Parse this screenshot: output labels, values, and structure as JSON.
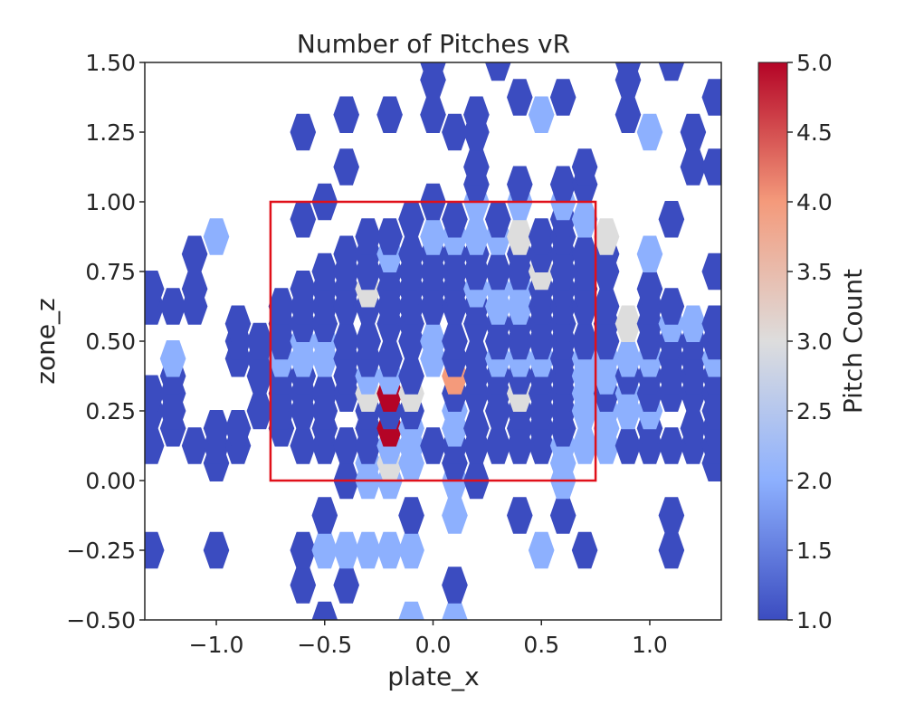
{
  "chart_data": {
    "type": "heatmap",
    "title": "Number of Pitches vR",
    "xlabel": "plate_x",
    "ylabel": "zone_z",
    "xlim": [
      -1.33,
      1.33
    ],
    "ylim": [
      -0.5,
      1.5
    ],
    "x_ticks": [
      -1.0,
      -0.5,
      0.0,
      0.5,
      1.0
    ],
    "x_tick_labels": [
      "−1.0",
      "−0.5",
      "0.0",
      "0.5",
      "1.0"
    ],
    "y_ticks": [
      -0.5,
      -0.25,
      0.0,
      0.25,
      0.5,
      0.75,
      1.0,
      1.25,
      1.5
    ],
    "y_tick_labels": [
      "−0.50",
      "−0.25",
      "0.00",
      "0.25",
      "0.50",
      "0.75",
      "1.00",
      "1.25",
      "1.50"
    ],
    "colorbar": {
      "label": "Pitch Count",
      "min": 1.0,
      "max": 5.0,
      "ticks": [
        1.0,
        1.5,
        2.0,
        2.5,
        3.0,
        3.5,
        4.0,
        4.5,
        5.0
      ],
      "tick_labels": [
        "1.0",
        "1.5",
        "2.0",
        "2.5",
        "3.0",
        "3.5",
        "4.0",
        "4.5",
        "5.0"
      ],
      "colormap": "coolwarm"
    },
    "strike_zone": {
      "x": [
        -0.75,
        0.75
      ],
      "z": [
        0.0,
        1.0
      ],
      "color": "#e0101a"
    },
    "hex_grid": {
      "x0": -1.3,
      "dx": 0.1,
      "z0": -0.5,
      "dz": 0.25
    },
    "cells": [
      [
        -1.3,
        -0.5,
        0
      ],
      [
        -0.9,
        -0.5,
        0
      ],
      [
        -0.5,
        -0.5,
        1
      ],
      [
        -0.1,
        -0.5,
        2
      ],
      [
        0.1,
        -0.5,
        2
      ],
      [
        -0.6,
        -0.375,
        1
      ],
      [
        -0.4,
        -0.375,
        1
      ],
      [
        0.1,
        -0.375,
        1
      ],
      [
        -1.3,
        -0.25,
        1
      ],
      [
        -1.0,
        -0.25,
        1
      ],
      [
        -0.6,
        -0.25,
        1
      ],
      [
        -0.5,
        -0.25,
        2
      ],
      [
        -0.4,
        -0.25,
        2
      ],
      [
        -0.3,
        -0.25,
        2
      ],
      [
        -0.2,
        -0.25,
        2
      ],
      [
        -0.1,
        -0.25,
        2
      ],
      [
        0.5,
        -0.25,
        2
      ],
      [
        0.7,
        -0.25,
        1
      ],
      [
        1.1,
        -0.25,
        1
      ],
      [
        -0.5,
        -0.125,
        1
      ],
      [
        -0.1,
        -0.125,
        1
      ],
      [
        0.1,
        -0.125,
        2
      ],
      [
        0.4,
        -0.125,
        1
      ],
      [
        0.6,
        -0.125,
        1
      ],
      [
        1.1,
        -0.125,
        1
      ],
      [
        -0.4,
        0.0,
        1
      ],
      [
        -0.3,
        0.0,
        2
      ],
      [
        -0.2,
        0.0,
        2
      ],
      [
        0.1,
        0.0,
        2
      ],
      [
        0.2,
        0.0,
        1
      ],
      [
        0.6,
        0.0,
        2
      ],
      [
        -1.0,
        0.0625,
        1
      ],
      [
        -0.3,
        0.0625,
        2
      ],
      [
        -0.2,
        0.0625,
        3
      ],
      [
        -0.1,
        0.0625,
        2
      ],
      [
        0.1,
        0.0625,
        1
      ],
      [
        0.6,
        0.0625,
        2
      ],
      [
        1.3,
        0.0625,
        1
      ],
      [
        -1.3,
        0.125,
        1
      ],
      [
        -1.1,
        0.125,
        1
      ],
      [
        -1.0,
        0.125,
        1
      ],
      [
        -0.9,
        0.125,
        1
      ],
      [
        -0.6,
        0.125,
        1
      ],
      [
        -0.5,
        0.125,
        1
      ],
      [
        -0.4,
        0.125,
        1
      ],
      [
        -0.3,
        0.125,
        1
      ],
      [
        -0.2,
        0.125,
        2
      ],
      [
        -0.1,
        0.125,
        2
      ],
      [
        0.0,
        0.125,
        1
      ],
      [
        0.1,
        0.125,
        1
      ],
      [
        0.2,
        0.125,
        1
      ],
      [
        0.3,
        0.125,
        1
      ],
      [
        0.4,
        0.125,
        1
      ],
      [
        0.5,
        0.125,
        1
      ],
      [
        0.6,
        0.125,
        2
      ],
      [
        0.7,
        0.125,
        2
      ],
      [
        0.8,
        0.125,
        2
      ],
      [
        0.9,
        0.125,
        1
      ],
      [
        1.0,
        0.125,
        1
      ],
      [
        1.1,
        0.125,
        1
      ],
      [
        1.2,
        0.125,
        1
      ],
      [
        1.3,
        0.125,
        1
      ],
      [
        -1.2,
        0.1875,
        1
      ],
      [
        -1.0,
        0.1875,
        1
      ],
      [
        -0.9,
        0.1875,
        1
      ],
      [
        -0.7,
        0.1875,
        1
      ],
      [
        -0.5,
        0.1875,
        1
      ],
      [
        -0.3,
        0.1875,
        1
      ],
      [
        -0.2,
        0.1875,
        5
      ],
      [
        -0.1,
        0.1875,
        2
      ],
      [
        0.1,
        0.1875,
        2
      ],
      [
        0.2,
        0.1875,
        1
      ],
      [
        0.4,
        0.1875,
        1
      ],
      [
        0.5,
        0.1875,
        1
      ],
      [
        0.6,
        0.1875,
        1
      ],
      [
        0.8,
        0.1875,
        2
      ],
      [
        1.0,
        0.1875,
        1
      ],
      [
        1.2,
        0.1875,
        1
      ],
      [
        1.3,
        0.1875,
        1
      ],
      [
        -1.3,
        0.25,
        1
      ],
      [
        -1.2,
        0.25,
        1
      ],
      [
        -0.8,
        0.25,
        1
      ],
      [
        -0.7,
        0.25,
        1
      ],
      [
        -0.6,
        0.25,
        1
      ],
      [
        -0.5,
        0.25,
        1
      ],
      [
        -0.3,
        0.25,
        1
      ],
      [
        -0.2,
        0.25,
        1
      ],
      [
        -0.1,
        0.25,
        1
      ],
      [
        0.1,
        0.25,
        2
      ],
      [
        0.3,
        0.25,
        1
      ],
      [
        0.4,
        0.25,
        1
      ],
      [
        0.5,
        0.25,
        1
      ],
      [
        0.6,
        0.25,
        1
      ],
      [
        0.7,
        0.25,
        2
      ],
      [
        0.8,
        0.25,
        2
      ],
      [
        0.9,
        0.25,
        2
      ],
      [
        1.0,
        0.25,
        2
      ],
      [
        1.3,
        0.25,
        1
      ],
      [
        -1.3,
        0.3125,
        1
      ],
      [
        -1.2,
        0.3125,
        1
      ],
      [
        -0.7,
        0.3125,
        1
      ],
      [
        -0.6,
        0.3125,
        1
      ],
      [
        -0.5,
        0.3125,
        1
      ],
      [
        -0.4,
        0.3125,
        1
      ],
      [
        -0.3,
        0.3125,
        3
      ],
      [
        -0.2,
        0.3125,
        5
      ],
      [
        -0.1,
        0.3125,
        3
      ],
      [
        0.1,
        0.3125,
        1
      ],
      [
        0.2,
        0.3125,
        1
      ],
      [
        0.3,
        0.3125,
        1
      ],
      [
        0.4,
        0.3125,
        3
      ],
      [
        0.5,
        0.3125,
        1
      ],
      [
        0.6,
        0.3125,
        1
      ],
      [
        0.7,
        0.3125,
        2
      ],
      [
        0.8,
        0.3125,
        1
      ],
      [
        0.9,
        0.3125,
        2
      ],
      [
        1.0,
        0.3125,
        1
      ],
      [
        1.1,
        0.3125,
        1
      ],
      [
        1.2,
        0.3125,
        1
      ],
      [
        1.3,
        0.3125,
        1
      ],
      [
        -1.2,
        0.375,
        1
      ],
      [
        -0.8,
        0.375,
        1
      ],
      [
        -0.7,
        0.375,
        1
      ],
      [
        -0.6,
        0.375,
        1
      ],
      [
        -0.4,
        0.375,
        1
      ],
      [
        -0.3,
        0.375,
        2
      ],
      [
        -0.2,
        0.375,
        2
      ],
      [
        -0.1,
        0.375,
        1
      ],
      [
        0.1,
        0.375,
        4
      ],
      [
        0.2,
        0.375,
        1
      ],
      [
        0.3,
        0.375,
        1
      ],
      [
        0.4,
        0.375,
        1
      ],
      [
        0.5,
        0.375,
        1
      ],
      [
        0.6,
        0.375,
        1
      ],
      [
        0.7,
        0.375,
        2
      ],
      [
        0.8,
        0.375,
        2
      ],
      [
        0.9,
        0.375,
        1
      ],
      [
        1.0,
        0.375,
        1
      ],
      [
        1.1,
        0.375,
        1
      ],
      [
        1.2,
        0.375,
        1
      ],
      [
        1.3,
        0.375,
        1
      ],
      [
        -1.2,
        0.4375,
        2
      ],
      [
        -0.9,
        0.4375,
        1
      ],
      [
        -0.8,
        0.4375,
        1
      ],
      [
        -0.7,
        0.4375,
        2
      ],
      [
        -0.6,
        0.4375,
        2
      ],
      [
        -0.5,
        0.4375,
        2
      ],
      [
        -0.4,
        0.4375,
        1
      ],
      [
        -0.3,
        0.4375,
        1
      ],
      [
        -0.2,
        0.4375,
        1
      ],
      [
        0.0,
        0.4375,
        2
      ],
      [
        0.1,
        0.4375,
        1
      ],
      [
        0.2,
        0.4375,
        1
      ],
      [
        0.3,
        0.4375,
        2
      ],
      [
        0.4,
        0.4375,
        2
      ],
      [
        0.5,
        0.4375,
        2
      ],
      [
        0.6,
        0.4375,
        1
      ],
      [
        0.7,
        0.4375,
        2
      ],
      [
        0.8,
        0.4375,
        2
      ],
      [
        0.9,
        0.4375,
        2
      ],
      [
        1.0,
        0.4375,
        2
      ],
      [
        1.1,
        0.4375,
        1
      ],
      [
        1.2,
        0.4375,
        1
      ],
      [
        1.3,
        0.4375,
        2
      ],
      [
        -0.9,
        0.5,
        1
      ],
      [
        -0.8,
        0.5,
        1
      ],
      [
        -0.7,
        0.5,
        1
      ],
      [
        -0.6,
        0.5,
        2
      ],
      [
        -0.5,
        0.5,
        2
      ],
      [
        -0.4,
        0.5,
        1
      ],
      [
        -0.3,
        0.5,
        1
      ],
      [
        -0.1,
        0.5,
        1
      ],
      [
        0.0,
        0.5,
        2
      ],
      [
        0.1,
        0.5,
        1
      ],
      [
        0.3,
        0.5,
        1
      ],
      [
        0.4,
        0.5,
        1
      ],
      [
        0.5,
        0.5,
        1
      ],
      [
        0.6,
        0.5,
        1
      ],
      [
        0.7,
        0.5,
        1
      ],
      [
        0.8,
        0.5,
        1
      ],
      [
        1.0,
        0.5,
        1
      ],
      [
        1.1,
        0.5,
        1
      ],
      [
        1.2,
        0.5,
        1
      ],
      [
        1.3,
        0.5,
        1
      ],
      [
        -0.9,
        0.5625,
        1
      ],
      [
        -0.7,
        0.5625,
        1
      ],
      [
        -0.6,
        0.5625,
        1
      ],
      [
        -0.5,
        0.5625,
        1
      ],
      [
        -0.2,
        0.5625,
        1
      ],
      [
        -0.1,
        0.5625,
        1
      ],
      [
        0.2,
        0.5625,
        1
      ],
      [
        0.3,
        0.5625,
        1
      ],
      [
        0.4,
        0.5625,
        1
      ],
      [
        0.5,
        0.5625,
        1
      ],
      [
        0.6,
        0.5625,
        1
      ],
      [
        0.8,
        0.5625,
        1
      ],
      [
        0.9,
        0.5625,
        3
      ],
      [
        1.0,
        0.5625,
        1
      ],
      [
        1.1,
        0.5625,
        2
      ],
      [
        1.2,
        0.5625,
        2
      ],
      [
        1.3,
        0.5625,
        1
      ],
      [
        -1.3,
        0.625,
        1
      ],
      [
        -1.2,
        0.625,
        1
      ],
      [
        -1.1,
        0.625,
        1
      ],
      [
        -0.7,
        0.625,
        1
      ],
      [
        -0.6,
        0.625,
        1
      ],
      [
        -0.5,
        0.625,
        1
      ],
      [
        -0.4,
        0.625,
        1
      ],
      [
        -0.3,
        0.625,
        1
      ],
      [
        -0.2,
        0.625,
        1
      ],
      [
        -0.1,
        0.625,
        1
      ],
      [
        0.0,
        0.625,
        1
      ],
      [
        0.1,
        0.625,
        1
      ],
      [
        0.2,
        0.625,
        1
      ],
      [
        0.3,
        0.625,
        2
      ],
      [
        0.4,
        0.625,
        2
      ],
      [
        0.5,
        0.625,
        1
      ],
      [
        0.6,
        0.625,
        1
      ],
      [
        0.7,
        0.625,
        1
      ],
      [
        0.8,
        0.625,
        1
      ],
      [
        1.0,
        0.625,
        1
      ],
      [
        1.1,
        0.625,
        1
      ],
      [
        -1.3,
        0.6875,
        1
      ],
      [
        -1.1,
        0.6875,
        1
      ],
      [
        -0.6,
        0.6875,
        1
      ],
      [
        -0.5,
        0.6875,
        1
      ],
      [
        -0.4,
        0.6875,
        1
      ],
      [
        -0.3,
        0.6875,
        3
      ],
      [
        -0.2,
        0.6875,
        1
      ],
      [
        -0.1,
        0.6875,
        1
      ],
      [
        0.0,
        0.6875,
        1
      ],
      [
        0.1,
        0.6875,
        1
      ],
      [
        0.2,
        0.6875,
        2
      ],
      [
        0.3,
        0.6875,
        2
      ],
      [
        0.4,
        0.6875,
        2
      ],
      [
        0.5,
        0.6875,
        1
      ],
      [
        0.6,
        0.6875,
        1
      ],
      [
        0.7,
        0.6875,
        1
      ],
      [
        1.0,
        0.6875,
        1
      ],
      [
        -0.5,
        0.75,
        1
      ],
      [
        -0.4,
        0.75,
        1
      ],
      [
        -0.3,
        0.75,
        1
      ],
      [
        -0.2,
        0.75,
        1
      ],
      [
        -0.1,
        0.75,
        1
      ],
      [
        0.0,
        0.75,
        1
      ],
      [
        0.1,
        0.75,
        1
      ],
      [
        0.2,
        0.75,
        1
      ],
      [
        0.3,
        0.75,
        1
      ],
      [
        0.4,
        0.75,
        1
      ],
      [
        0.5,
        0.75,
        3
      ],
      [
        0.6,
        0.75,
        1
      ],
      [
        0.7,
        0.75,
        1
      ],
      [
        0.8,
        0.75,
        1
      ],
      [
        1.3,
        0.75,
        1
      ],
      [
        -1.1,
        0.8125,
        1
      ],
      [
        -0.4,
        0.8125,
        1
      ],
      [
        -0.3,
        0.8125,
        1
      ],
      [
        -0.2,
        0.8125,
        2
      ],
      [
        -0.1,
        0.8125,
        1
      ],
      [
        0.0,
        0.8125,
        1
      ],
      [
        0.1,
        0.8125,
        1
      ],
      [
        0.2,
        0.8125,
        1
      ],
      [
        0.4,
        0.8125,
        1
      ],
      [
        0.5,
        0.8125,
        1
      ],
      [
        0.6,
        0.8125,
        1
      ],
      [
        0.7,
        0.8125,
        1
      ],
      [
        0.8,
        0.8125,
        1
      ],
      [
        1.0,
        0.8125,
        2
      ],
      [
        -1.0,
        0.875,
        2
      ],
      [
        -0.3,
        0.875,
        1
      ],
      [
        -0.2,
        0.875,
        1
      ],
      [
        0.0,
        0.875,
        2
      ],
      [
        0.1,
        0.875,
        2
      ],
      [
        0.2,
        0.875,
        2
      ],
      [
        0.3,
        0.875,
        2
      ],
      [
        0.4,
        0.875,
        3
      ],
      [
        0.5,
        0.875,
        1
      ],
      [
        0.6,
        0.875,
        1
      ],
      [
        0.8,
        0.875,
        3
      ],
      [
        -0.6,
        0.9375,
        1
      ],
      [
        -0.1,
        0.9375,
        1
      ],
      [
        0.1,
        0.9375,
        1
      ],
      [
        0.3,
        0.9375,
        1
      ],
      [
        0.6,
        0.9375,
        1
      ],
      [
        0.7,
        0.9375,
        2
      ],
      [
        1.1,
        0.9375,
        1
      ],
      [
        -0.5,
        1.0,
        1
      ],
      [
        0.0,
        1.0,
        1
      ],
      [
        0.2,
        1.0,
        2
      ],
      [
        0.4,
        1.0,
        2
      ],
      [
        0.6,
        1.0,
        2
      ],
      [
        0.2,
        1.0625,
        1
      ],
      [
        0.4,
        1.0625,
        1
      ],
      [
        0.6,
        1.0625,
        1
      ],
      [
        0.7,
        1.0625,
        1
      ],
      [
        -0.4,
        1.125,
        1
      ],
      [
        0.2,
        1.125,
        1
      ],
      [
        0.7,
        1.125,
        1
      ],
      [
        1.2,
        1.125,
        1
      ],
      [
        1.3,
        1.125,
        1
      ],
      [
        -0.6,
        1.25,
        1
      ],
      [
        0.1,
        1.25,
        1
      ],
      [
        0.2,
        1.25,
        1
      ],
      [
        1.0,
        1.25,
        2
      ],
      [
        1.2,
        1.25,
        1
      ],
      [
        -0.4,
        1.3125,
        1
      ],
      [
        -0.2,
        1.3125,
        1
      ],
      [
        0.0,
        1.3125,
        1
      ],
      [
        0.2,
        1.3125,
        1
      ],
      [
        0.5,
        1.3125,
        2
      ],
      [
        0.9,
        1.3125,
        1
      ],
      [
        0.4,
        1.375,
        1
      ],
      [
        0.6,
        1.375,
        1
      ],
      [
        1.3,
        1.375,
        1
      ],
      [
        0.0,
        1.5,
        1
      ],
      [
        0.3,
        1.5,
        1
      ],
      [
        0.9,
        1.5,
        1
      ],
      [
        1.1,
        1.5,
        1
      ],
      [
        0.0,
        1.4375,
        1
      ],
      [
        0.9,
        1.4375,
        1
      ]
    ]
  }
}
